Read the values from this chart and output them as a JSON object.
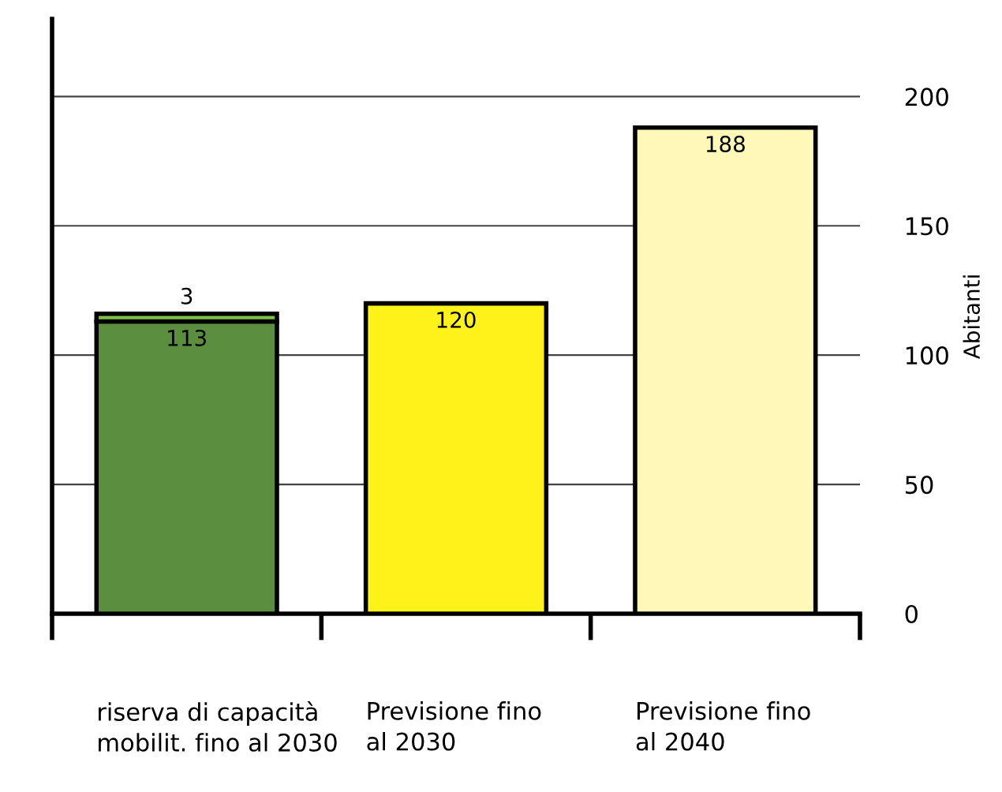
{
  "chart_data": {
    "type": "bar",
    "stacked": true,
    "ylabel": "Abitanti",
    "categories": [
      "riserva di capacità\nmobilit. fino al 2030",
      "Previsione fino\nal 2030",
      "Previsione fino\nal 2040"
    ],
    "series": [
      {
        "values": [
          113,
          120,
          188
        ],
        "colors": [
          "#5b8f3f",
          "#fff21a",
          "#fff8b8"
        ]
      },
      {
        "values": [
          3,
          null,
          null
        ],
        "color": "#7ec04a"
      }
    ],
    "ylim": [
      0,
      230
    ],
    "yticks": [
      0,
      50,
      100,
      150,
      200
    ],
    "grid": "y",
    "data_labels": true,
    "legend": false
  }
}
